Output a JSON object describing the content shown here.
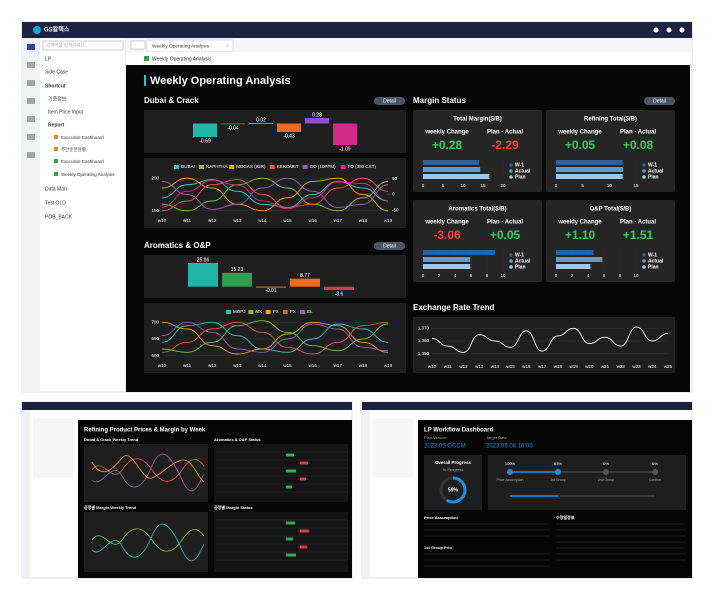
{
  "app": {
    "logo": "GS칼텍스",
    "search": "검색어를 입력하세요.",
    "menu": [
      "LP",
      "Side Case",
      "Shortcut",
      "기준정보",
      "Item Price Input",
      "Report",
      "Executive Dashboard",
      "주간운전현황",
      "Executive Dashboard",
      "Weekly Operating Analysis",
      "Data Mart",
      "Test OLD",
      "POB_BACK"
    ],
    "tab": "Weekly Operating Analysis",
    "breadcrumb": "Weekly Operating Analysis",
    "title": "Weekly Operating Analysis",
    "sections": [
      "Dubai & Crack",
      "Aromatics & O&P",
      "Margin Status",
      "Exchange Rate Trend"
    ],
    "detail": "Detail"
  },
  "bottom_left": {
    "title": "Refining Product Prices & Margin by Week",
    "panels": [
      "Dubai & Crack Weekly Trend",
      "Aromatics & O&P Status",
      "공정별 Margin Weekly Trend",
      "공정별 Margin Status"
    ]
  },
  "bottom_right": {
    "title": "LP Workflow Dashboard",
    "plan_label": "Plan Version",
    "plan_value": "2023.05 OCCM",
    "target_label": "Target Date",
    "target_value": "2023.05.08 16:00",
    "progress_title": "Overall Progress",
    "progress_status": "In-Progress",
    "progress_value": "59%",
    "steps": [
      "Price Assumption",
      "1st Group",
      "2nd Group",
      "Confirm"
    ],
    "step_values": [
      "100%",
      "63%",
      "0%",
      "0%"
    ],
    "sections": [
      "Price Assumption",
      "1st Group Prio",
      "수정일정표"
    ]
  },
  "chart_data": [
    {
      "type": "bar",
      "categories": [
        null,
        null,
        null,
        null,
        null,
        null
      ],
      "values": [
        -0.69,
        -0.04,
        0.02,
        -0.43,
        0.28,
        -1.09
      ],
      "colors": [
        "#1fb5a8",
        "#2f9e4f",
        "#f0a020",
        "#ee6a1c",
        "#8e4fc8",
        "#d42a8c"
      ]
    },
    {
      "type": "line",
      "categories": [
        "w10",
        "w11",
        "w12",
        "w13",
        "w14",
        "w15",
        "w16",
        "w17",
        "w18",
        "w19"
      ],
      "ylim": [
        145,
        205
      ],
      "yticks": [
        150,
        200
      ],
      "y2lim": [
        -62,
        62
      ],
      "y2ticks": [
        -50,
        0,
        50
      ],
      "series": [
        {
          "name": "DUBAI",
          "color": "#2ec4c6",
          "values": [
            170,
            190,
            198,
            180,
            160,
            155,
            175,
            195,
            185,
            165
          ]
        },
        {
          "name": "NAPHTHA",
          "color": "#7bc043",
          "values": [
            160,
            150,
            165,
            190,
            200,
            185,
            160,
            150,
            170,
            195
          ]
        },
        {
          "name": "MOGAS (92R)",
          "color": "#f39c12",
          "values": [
            185,
            200,
            185,
            160,
            150,
            170,
            195,
            200,
            175,
            150
          ]
        },
        {
          "name": "KERO/JET",
          "color": "#e8553e",
          "values": [
            150,
            165,
            190,
            198,
            175,
            155,
            160,
            185,
            200,
            180
          ]
        },
        {
          "name": "GO (10PPM)",
          "color": "#9b59b6",
          "values": [
            195,
            175,
            152,
            160,
            185,
            200,
            180,
            155,
            160,
            190
          ]
        },
        {
          "name": "FO (380 CST)",
          "color": "#e91e8c",
          "axis": "y2",
          "values": [
            -40,
            10,
            45,
            30,
            -20,
            -45,
            -10,
            40,
            35,
            -20
          ]
        }
      ]
    },
    {
      "type": "bar",
      "categories": [
        null,
        null,
        null,
        null,
        null
      ],
      "values": [
        25.86,
        15.23,
        -0.01,
        8.77,
        -3.6
      ],
      "colors": [
        "#1fb5a8",
        "#2f9e4f",
        "#f0a020",
        "#ee6a1c",
        "#e03a2a"
      ]
    },
    {
      "type": "line",
      "categories": [
        "w10",
        "w11",
        "w12",
        "w13",
        "w14",
        "w15",
        "w16",
        "w17",
        "w18",
        "w19"
      ],
      "ylim": [
        590,
        710
      ],
      "yticks": [
        600,
        650,
        700
      ],
      "series": [
        {
          "name": "MOPJ",
          "color": "#2ec4c6",
          "values": [
            640,
            690,
            700,
            660,
            620,
            610,
            650,
            695,
            680,
            640
          ]
        },
        {
          "name": "MX",
          "color": "#7bc043",
          "values": [
            620,
            610,
            640,
            690,
            705,
            670,
            630,
            615,
            650,
            695
          ]
        },
        {
          "name": "PX",
          "color": "#f39c12",
          "values": [
            700,
            680,
            630,
            605,
            620,
            665,
            700,
            690,
            640,
            610
          ]
        },
        {
          "name": "PX",
          "color": "#e8553e",
          "values": [
            610,
            640,
            680,
            700,
            670,
            625,
            605,
            640,
            690,
            700
          ]
        },
        {
          "name": "EL",
          "color": "#9b59b6",
          "values": [
            660,
            700,
            670,
            620,
            610,
            650,
            695,
            680,
            625,
            615
          ]
        }
      ]
    },
    {
      "type": "hbar",
      "title": "Total Margin($/B)",
      "labels": [
        "weekly Change",
        "Plan - Actual"
      ],
      "figures": [
        "+0.28",
        "-2.29"
      ],
      "categories": [
        "W-1",
        "Actual",
        "Plan"
      ],
      "values": [
        14.0,
        14.3,
        16.6
      ],
      "colors": [
        "#2c5f9e",
        "#5b9bd5",
        "#9cc8ee"
      ],
      "xlim": [
        0,
        20
      ],
      "xticks": [
        0,
        5,
        10,
        15,
        20
      ]
    },
    {
      "type": "hbar",
      "title": "Refining Total($/B)",
      "labels": [
        "weekly Change",
        "Plan - Actual"
      ],
      "figures": [
        "+0.05",
        "+0.08"
      ],
      "categories": [
        "W-1",
        "Actual",
        "Plan"
      ],
      "values": [
        12.5,
        12.6,
        12.5
      ],
      "colors": [
        "#2c5f9e",
        "#5b9bd5",
        "#9cc8ee"
      ],
      "xlim": [
        0,
        15
      ],
      "xticks": [
        0,
        5,
        10,
        15
      ]
    },
    {
      "type": "hbar",
      "title": "Aromatics Total($/B)",
      "labels": [
        "weekly Change",
        "Plan - Actual"
      ],
      "figures": [
        "-3.06",
        "+0.05"
      ],
      "categories": [
        "W-1",
        "Actual",
        "Plan"
      ],
      "values": [
        9.0,
        5.9,
        5.9
      ],
      "colors": [
        "#2c5f9e",
        "#5b9bd5",
        "#9cc8ee"
      ],
      "xlim": [
        0,
        10
      ],
      "xticks": [
        0,
        2,
        4,
        6,
        8,
        10
      ]
    },
    {
      "type": "hbar",
      "title": "O&P Total($/B)",
      "labels": [
        "weekly Change",
        "Plan - Actual"
      ],
      "figures": [
        "+1.10",
        "+1.51"
      ],
      "categories": [
        "W-1",
        "Actual",
        "Plan"
      ],
      "values": [
        4.7,
        5.8,
        4.3
      ],
      "colors": [
        "#2c5f9e",
        "#5b9bd5",
        "#9cc8ee"
      ],
      "xlim": [
        0,
        10
      ],
      "xticks": [
        0,
        2,
        4,
        6,
        8,
        10
      ]
    },
    {
      "type": "line",
      "categories": [
        "w10",
        "w11",
        "w12",
        "w13",
        "w14",
        "w15",
        "w16",
        "w17",
        "w18",
        "w19",
        "w20",
        "w21",
        "w22",
        "w23",
        "w24",
        "w25"
      ],
      "ylim": [
        1345,
        1375
      ],
      "yticks": [
        {
          "value": 1350,
          "label": "1,350"
        },
        {
          "value": 1360,
          "label": "1,360"
        },
        {
          "value": 1370,
          "label": "1,370"
        }
      ],
      "series": [
        {
          "color": "#ffffff",
          "values": [
            1362,
            1356,
            1351,
            1365,
            1360,
            1355,
            1368,
            1352,
            1364,
            1370,
            1358,
            1363,
            1356,
            1371,
            1360,
            1366
          ]
        }
      ]
    }
  ]
}
